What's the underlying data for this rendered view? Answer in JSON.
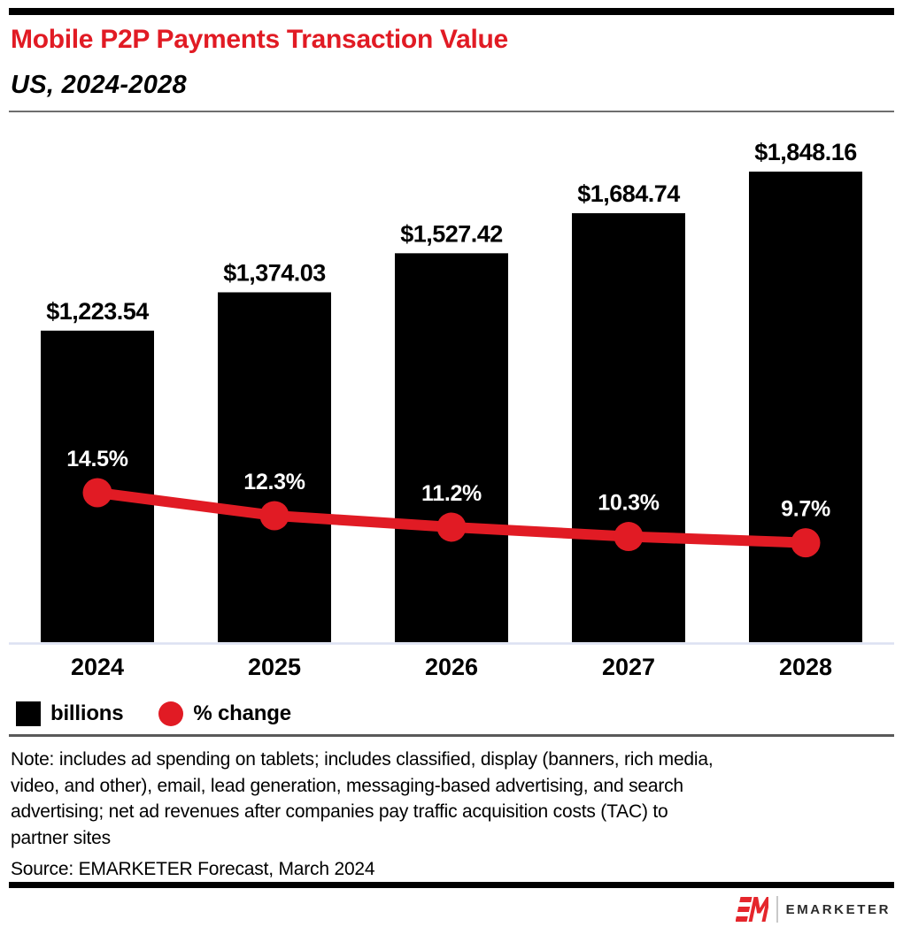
{
  "header": {
    "title": "Mobile P2P Payments Transaction Value",
    "subtitle": "US, 2024-2028"
  },
  "chart_data": {
    "type": "bar",
    "combo": "bar with line overlay",
    "title": "Mobile P2P Payments Transaction Value",
    "subtitle": "US, 2024-2028",
    "categories": [
      "2024",
      "2025",
      "2026",
      "2027",
      "2028"
    ],
    "series": [
      {
        "name": "billions",
        "type": "bar",
        "color": "#000000",
        "values": [
          1223.54,
          1374.03,
          1527.42,
          1684.74,
          1848.16
        ],
        "labels": [
          "$1,223.54",
          "$1,374.03",
          "$1,527.42",
          "$1,684.74",
          "$1,848.16"
        ]
      },
      {
        "name": "% change",
        "type": "line",
        "color": "#e11b24",
        "values": [
          14.5,
          12.3,
          11.2,
          10.3,
          9.7
        ],
        "labels": [
          "14.5%",
          "12.3%",
          "11.2%",
          "10.3%",
          "9.7%"
        ]
      }
    ],
    "xlabel": "",
    "ylabel": "",
    "grid": false,
    "legend_position": "bottom"
  },
  "legend": {
    "items": [
      {
        "label": "billions",
        "swatch": "square",
        "color": "#000000"
      },
      {
        "label": "% change",
        "swatch": "circle",
        "color": "#e11b24"
      }
    ]
  },
  "note": {
    "lines": [
      "Note: includes ad spending on tablets; includes classified, display (banners, rich media,",
      "video, and other), email, lead generation, messaging-based advertising, and search",
      "advertising; net ad revenues after companies pay traffic acquisition costs (TAC) to",
      "partner sites"
    ],
    "source": "Source: EMARKETER Forecast, March 2024"
  },
  "footer": {
    "brand": "EMARKETER"
  },
  "colors": {
    "accent_red": "#e11b24",
    "baseline": "#dce1f2",
    "divider_gray": "#595959",
    "brand_text": "#2b2b2b"
  }
}
